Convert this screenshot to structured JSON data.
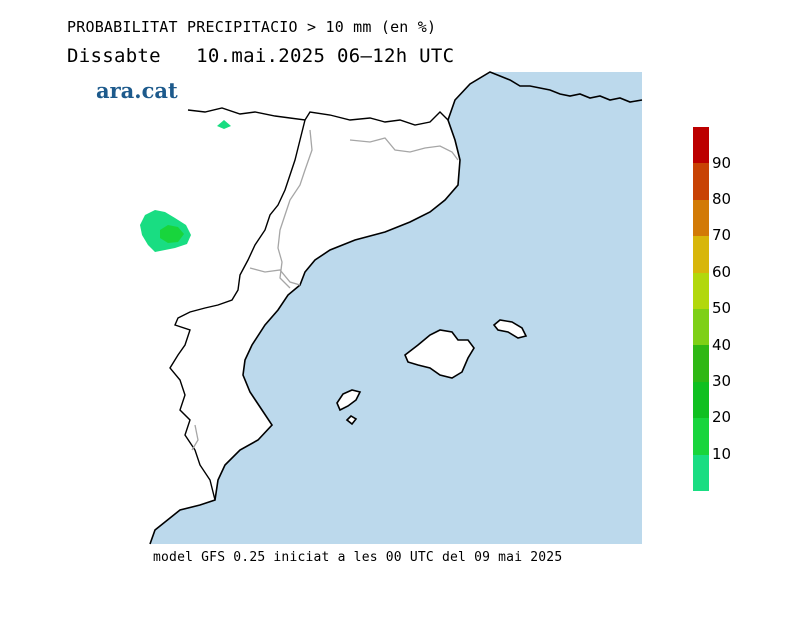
{
  "header": {
    "title": "PROBABILITAT PRECIPITACIO > 10 mm (en %)",
    "subtitle": "Dissabte   10.mai.2025 06–12h UTC"
  },
  "logo": {
    "text": "ara.cat"
  },
  "footer": {
    "text": "model GFS 0.25 iniciat a les 00 UTC del 09 mai 2025"
  },
  "map": {
    "sea_color": "#bcd9ec",
    "land_color": "#ffffff"
  },
  "legend": {
    "ticks": [
      "10",
      "20",
      "30",
      "40",
      "50",
      "60",
      "70",
      "80",
      "90"
    ],
    "colors": [
      "#19dd82",
      "#18d53c",
      "#10c020",
      "#2fb814",
      "#7ed016",
      "#b2d80c",
      "#d8b60a",
      "#d27a06",
      "#c84204",
      "#bc0000"
    ]
  },
  "precip_areas": [
    {
      "probability_band": "10-20",
      "color": "#19dd82"
    },
    {
      "probability_band": "20-30",
      "color": "#18d53c"
    }
  ]
}
